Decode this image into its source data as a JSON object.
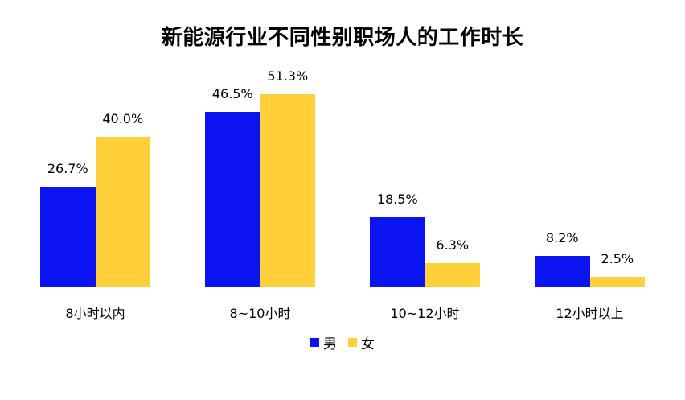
{
  "chart_data": {
    "type": "bar",
    "title": "新能源行业不同性别职场人的工作时长",
    "categories": [
      "8小时以内",
      "8~10小时",
      "10~12小时",
      "12小时以上"
    ],
    "series": [
      {
        "name": "男",
        "color": "#0A14F0",
        "values": [
          26.7,
          46.5,
          18.5,
          8.2
        ],
        "labels": [
          "26.7%",
          "46.5%",
          "18.5%",
          "8.2%"
        ]
      },
      {
        "name": "女",
        "color": "#FFD03A",
        "values": [
          40.0,
          51.3,
          6.3,
          2.5
        ],
        "labels": [
          "40.0%",
          "51.3%",
          "6.3%",
          "2.5%"
        ]
      }
    ],
    "xlabel": "",
    "ylabel": "",
    "ylim": [
      0,
      55
    ],
    "grid": false,
    "legend_position": "bottom",
    "value_format": "percent"
  }
}
